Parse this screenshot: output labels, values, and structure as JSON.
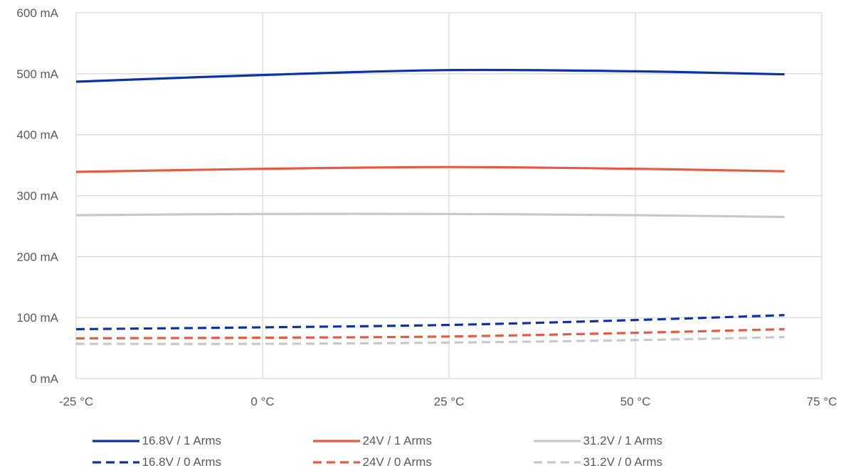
{
  "chart_data": {
    "type": "line",
    "title": "",
    "xlabel": "",
    "ylabel": "",
    "xlim": [
      -25,
      75
    ],
    "ylim": [
      0,
      600
    ],
    "x_ticks": [
      -25,
      0,
      25,
      50,
      75
    ],
    "x_tick_labels": [
      "-25 °C",
      "0 °C",
      "25 °C",
      "50 °C",
      "75 °C"
    ],
    "y_ticks": [
      0,
      100,
      200,
      300,
      400,
      500,
      600
    ],
    "y_tick_labels": [
      "0 mA",
      "100 mA",
      "200 mA",
      "300 mA",
      "400 mA",
      "500 mA",
      "600 mA"
    ],
    "grid": true,
    "legend_position": "bottom",
    "x": [
      -25,
      0,
      25,
      50,
      70
    ],
    "series": [
      {
        "name": "16.8V / 1 Arms",
        "values": [
          487,
          498,
          506,
          504,
          499
        ],
        "color": "#0b33a6",
        "dash": "solid"
      },
      {
        "name": "24V / 1 Arms",
        "values": [
          339,
          344,
          347,
          344,
          340
        ],
        "color": "#e45a42",
        "dash": "solid"
      },
      {
        "name": "31.2V / 1 Arms",
        "values": [
          268,
          270,
          270,
          268,
          265
        ],
        "color": "#c8c8c8",
        "dash": "solid"
      },
      {
        "name": "16.8V / 0 Arms",
        "values": [
          81,
          84,
          88,
          96,
          104
        ],
        "color": "#0b33a6",
        "dash": "dashed"
      },
      {
        "name": "24V / 0 Arms",
        "values": [
          66,
          67,
          69,
          75,
          81
        ],
        "color": "#e45a42",
        "dash": "dashed"
      },
      {
        "name": "31.2V / 0 Arms",
        "values": [
          57,
          57,
          59,
          63,
          68
        ],
        "color": "#c8c8c8",
        "dash": "dashed"
      }
    ]
  }
}
